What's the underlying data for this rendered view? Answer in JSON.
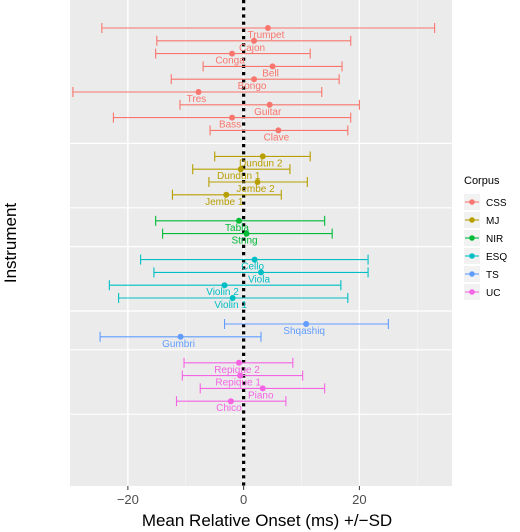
{
  "chart_data": {
    "type": "scatter",
    "subtype": "dot-with-error-bars",
    "xlabel": "Mean Relative Onset (ms) +/−SD",
    "ylabel": "Instrument",
    "xlim": [
      -30,
      36
    ],
    "x_ticks": [
      -20,
      0,
      20
    ],
    "x_tick_labels": [
      "−20",
      "0",
      "20"
    ],
    "reference_line_x": 0,
    "grid": true,
    "legend_position": "right",
    "legend_title": "Corpus",
    "legend": [
      {
        "name": "CSS",
        "color": "#F8766D"
      },
      {
        "name": "MJ",
        "color": "#B79F00"
      },
      {
        "name": "NIR",
        "color": "#00BA38"
      },
      {
        "name": "ESQ",
        "color": "#00BFC4"
      },
      {
        "name": "TS",
        "color": "#619CFF"
      },
      {
        "name": "UC",
        "color": "#F564E3"
      }
    ],
    "series": [
      {
        "name": "CSS",
        "color": "#F8766D",
        "points": [
          {
            "label": "Trumpet",
            "mean": 4.2,
            "low": -24.5,
            "high": 33.0
          },
          {
            "label": "Cajon",
            "mean": 1.8,
            "low": -15.0,
            "high": 18.5
          },
          {
            "label": "Conga",
            "mean": -2.0,
            "low": -15.2,
            "high": 11.5
          },
          {
            "label": "Bell",
            "mean": 5.0,
            "low": -7.0,
            "high": 17.0
          },
          {
            "label": "Bongo",
            "mean": 1.8,
            "low": -12.5,
            "high": 16.5
          },
          {
            "label": "Tres",
            "mean": -7.8,
            "low": -29.5,
            "high": 13.5
          },
          {
            "label": "Guitar",
            "mean": 4.5,
            "low": -11.0,
            "high": 20.0
          },
          {
            "label": "Bass",
            "mean": -2.0,
            "low": -22.5,
            "high": 18.5
          },
          {
            "label": "Clave",
            "mean": 6.0,
            "low": -5.8,
            "high": 18.0
          }
        ]
      },
      {
        "name": "MJ",
        "color": "#B79F00",
        "points": [
          {
            "label": "Dundun 2",
            "mean": 3.3,
            "low": -5.0,
            "high": 11.5
          },
          {
            "label": "Dundun 1",
            "mean": -0.5,
            "low": -8.8,
            "high": 8.0
          },
          {
            "label": "Jembe 2",
            "mean": 2.4,
            "low": -6.0,
            "high": 11.0
          },
          {
            "label": "Jembe 1",
            "mean": -3.0,
            "low": -12.3,
            "high": 6.5
          }
        ]
      },
      {
        "name": "NIR",
        "color": "#00BA38",
        "points": [
          {
            "label": "Tabla",
            "mean": -0.8,
            "low": -15.2,
            "high": 14.0
          },
          {
            "label": "String",
            "mean": 0.5,
            "low": -14.0,
            "high": 15.3
          }
        ]
      },
      {
        "name": "ESQ",
        "color": "#00BFC4",
        "points": [
          {
            "label": "Cello",
            "mean": 1.9,
            "low": -17.8,
            "high": 21.5
          },
          {
            "label": "Viola",
            "mean": 3.0,
            "low": -15.5,
            "high": 21.5
          },
          {
            "label": "Violin 2",
            "mean": -3.3,
            "low": -23.2,
            "high": 16.8
          },
          {
            "label": "Violin 1",
            "mean": -1.9,
            "low": -21.6,
            "high": 18.0
          }
        ]
      },
      {
        "name": "TS",
        "color": "#619CFF",
        "points": [
          {
            "label": "Shqashiq",
            "mean": 10.8,
            "low": -3.3,
            "high": 25.0
          },
          {
            "label": "Gumbri",
            "mean": -10.9,
            "low": -24.8,
            "high": 3.0
          }
        ]
      },
      {
        "name": "UC",
        "color": "#F564E3",
        "points": [
          {
            "label": "Repique 2",
            "mean": -0.8,
            "low": -10.3,
            "high": 8.5
          },
          {
            "label": "Repique 1",
            "mean": -0.6,
            "low": -10.6,
            "high": 10.2
          },
          {
            "label": "Piano",
            "mean": 3.3,
            "low": -7.5,
            "high": 14.0
          },
          {
            "label": "Chico",
            "mean": -2.2,
            "low": -11.6,
            "high": 7.3
          }
        ]
      }
    ]
  }
}
